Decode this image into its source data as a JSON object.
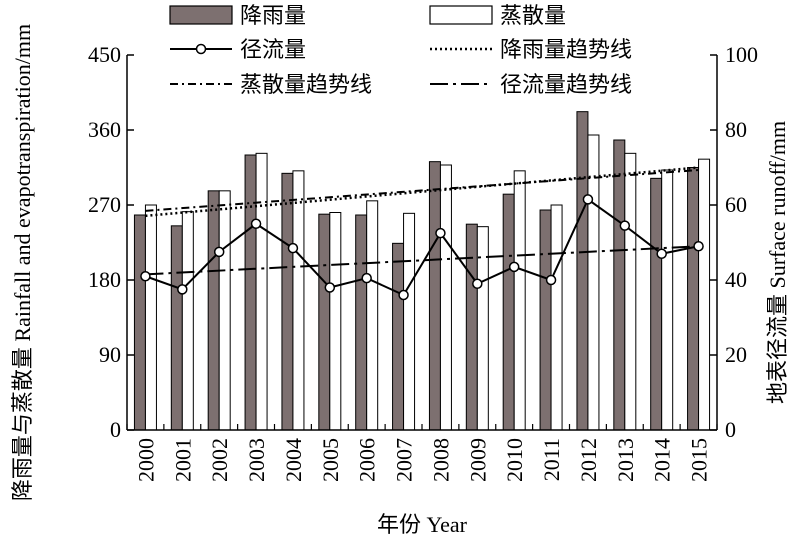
{
  "chart_data": {
    "type": "bar",
    "categories": [
      "2000",
      "2001",
      "2002",
      "2003",
      "2004",
      "2005",
      "2006",
      "2007",
      "2008",
      "2009",
      "2010",
      "2011",
      "2012",
      "2013",
      "2014",
      "2015"
    ],
    "series": [
      {
        "name": "降雨量",
        "kind": "bar",
        "axis": "left",
        "color": "#7d7070",
        "values": [
          258,
          245,
          287,
          330,
          308,
          259,
          258,
          224,
          322,
          247,
          283,
          264,
          382,
          348,
          302,
          315
        ]
      },
      {
        "name": "蒸散量",
        "kind": "bar",
        "axis": "left",
        "color": "#ffffff",
        "values": [
          270,
          262,
          287,
          332,
          311,
          261,
          275,
          260,
          318,
          244,
          311,
          270,
          354,
          332,
          312,
          325
        ]
      },
      {
        "name": "径流量",
        "kind": "line",
        "axis": "right",
        "marker": "circle",
        "values": [
          41,
          37.5,
          47.5,
          55,
          48.5,
          38,
          40.5,
          36,
          52.5,
          39,
          43.5,
          40,
          61.5,
          54.5,
          47,
          49
        ]
      }
    ],
    "trendlines": [
      {
        "name": "降雨量趋势线",
        "style": "dotted",
        "axis": "left",
        "start": 257,
        "end": 315
      },
      {
        "name": "蒸散量趋势线",
        "style": "dash-dot",
        "axis": "left",
        "start": 263,
        "end": 312
      },
      {
        "name": "径流量趋势线",
        "style": "long-dash-dot",
        "axis": "right",
        "start": 41.5,
        "end": 49
      }
    ],
    "left_axis": {
      "label": "降雨量与蒸散量 Rainfall and evapotranspiration/mm",
      "ylim": [
        0,
        450
      ],
      "ticks": [
        "0",
        "90",
        "180",
        "270",
        "360",
        "450"
      ]
    },
    "right_axis": {
      "label": "地表径流量 Surface runoff/mm",
      "ylim": [
        0,
        100
      ],
      "ticks": [
        "0",
        "20",
        "40",
        "60",
        "80",
        "100"
      ]
    },
    "xlabel": "年份 Year",
    "grid": false,
    "legend_position": "top"
  }
}
